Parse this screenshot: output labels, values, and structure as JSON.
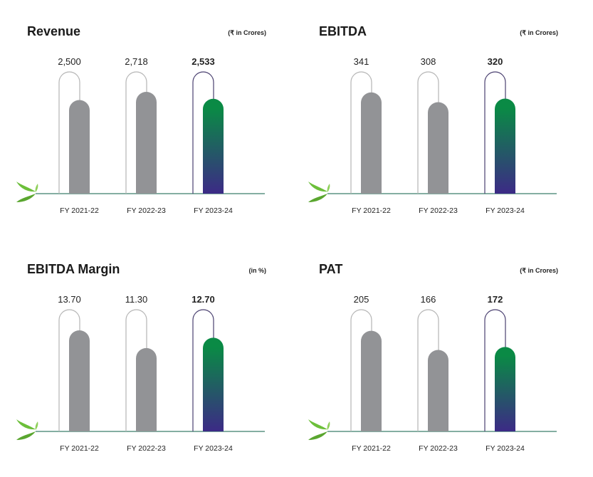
{
  "chart_data": [
    {
      "type": "bar",
      "title": "Revenue",
      "unit": "(₹ in Crores)",
      "categories": [
        "FY 2021-22",
        "FY 2022-23",
        "FY 2023-24"
      ],
      "values": [
        2500,
        2718,
        2533
      ],
      "value_labels": [
        "2,500",
        "2,718",
        "2,533"
      ],
      "ylim": [
        0,
        3250
      ]
    },
    {
      "type": "bar",
      "title": "EBITDA",
      "unit": "(₹ in Crores)",
      "categories": [
        "FY 2021-22",
        "FY 2022-23",
        "FY 2023-24"
      ],
      "values": [
        341,
        308,
        320
      ],
      "value_labels": [
        "341",
        "308",
        "320"
      ],
      "ylim": [
        0,
        410
      ]
    },
    {
      "type": "bar",
      "title": "EBITDA Margin",
      "unit": "(in %)",
      "categories": [
        "FY 2021-22",
        "FY 2022-23",
        "FY 2023-24"
      ],
      "values": [
        13.7,
        11.3,
        12.7
      ],
      "value_labels": [
        "13.70",
        "11.30",
        "12.70"
      ],
      "ylim": [
        0,
        16.5
      ]
    },
    {
      "type": "bar",
      "title": "PAT",
      "unit": "(₹ in Crores)",
      "categories": [
        "FY 2021-22",
        "FY 2022-23",
        "FY 2023-24"
      ],
      "values": [
        205,
        166,
        172
      ],
      "value_labels": [
        "205",
        "166",
        "172"
      ],
      "ylim": [
        0,
        248
      ]
    }
  ],
  "colors": {
    "past_bar": "#929396",
    "highlight_top": "#0a8a45",
    "highlight_bottom": "#3c2a86",
    "outline_past": "#b5b5b5",
    "outline_current": "#4a4070",
    "baseline": "#3a7d6a",
    "leaf": "#6cbf3a"
  }
}
